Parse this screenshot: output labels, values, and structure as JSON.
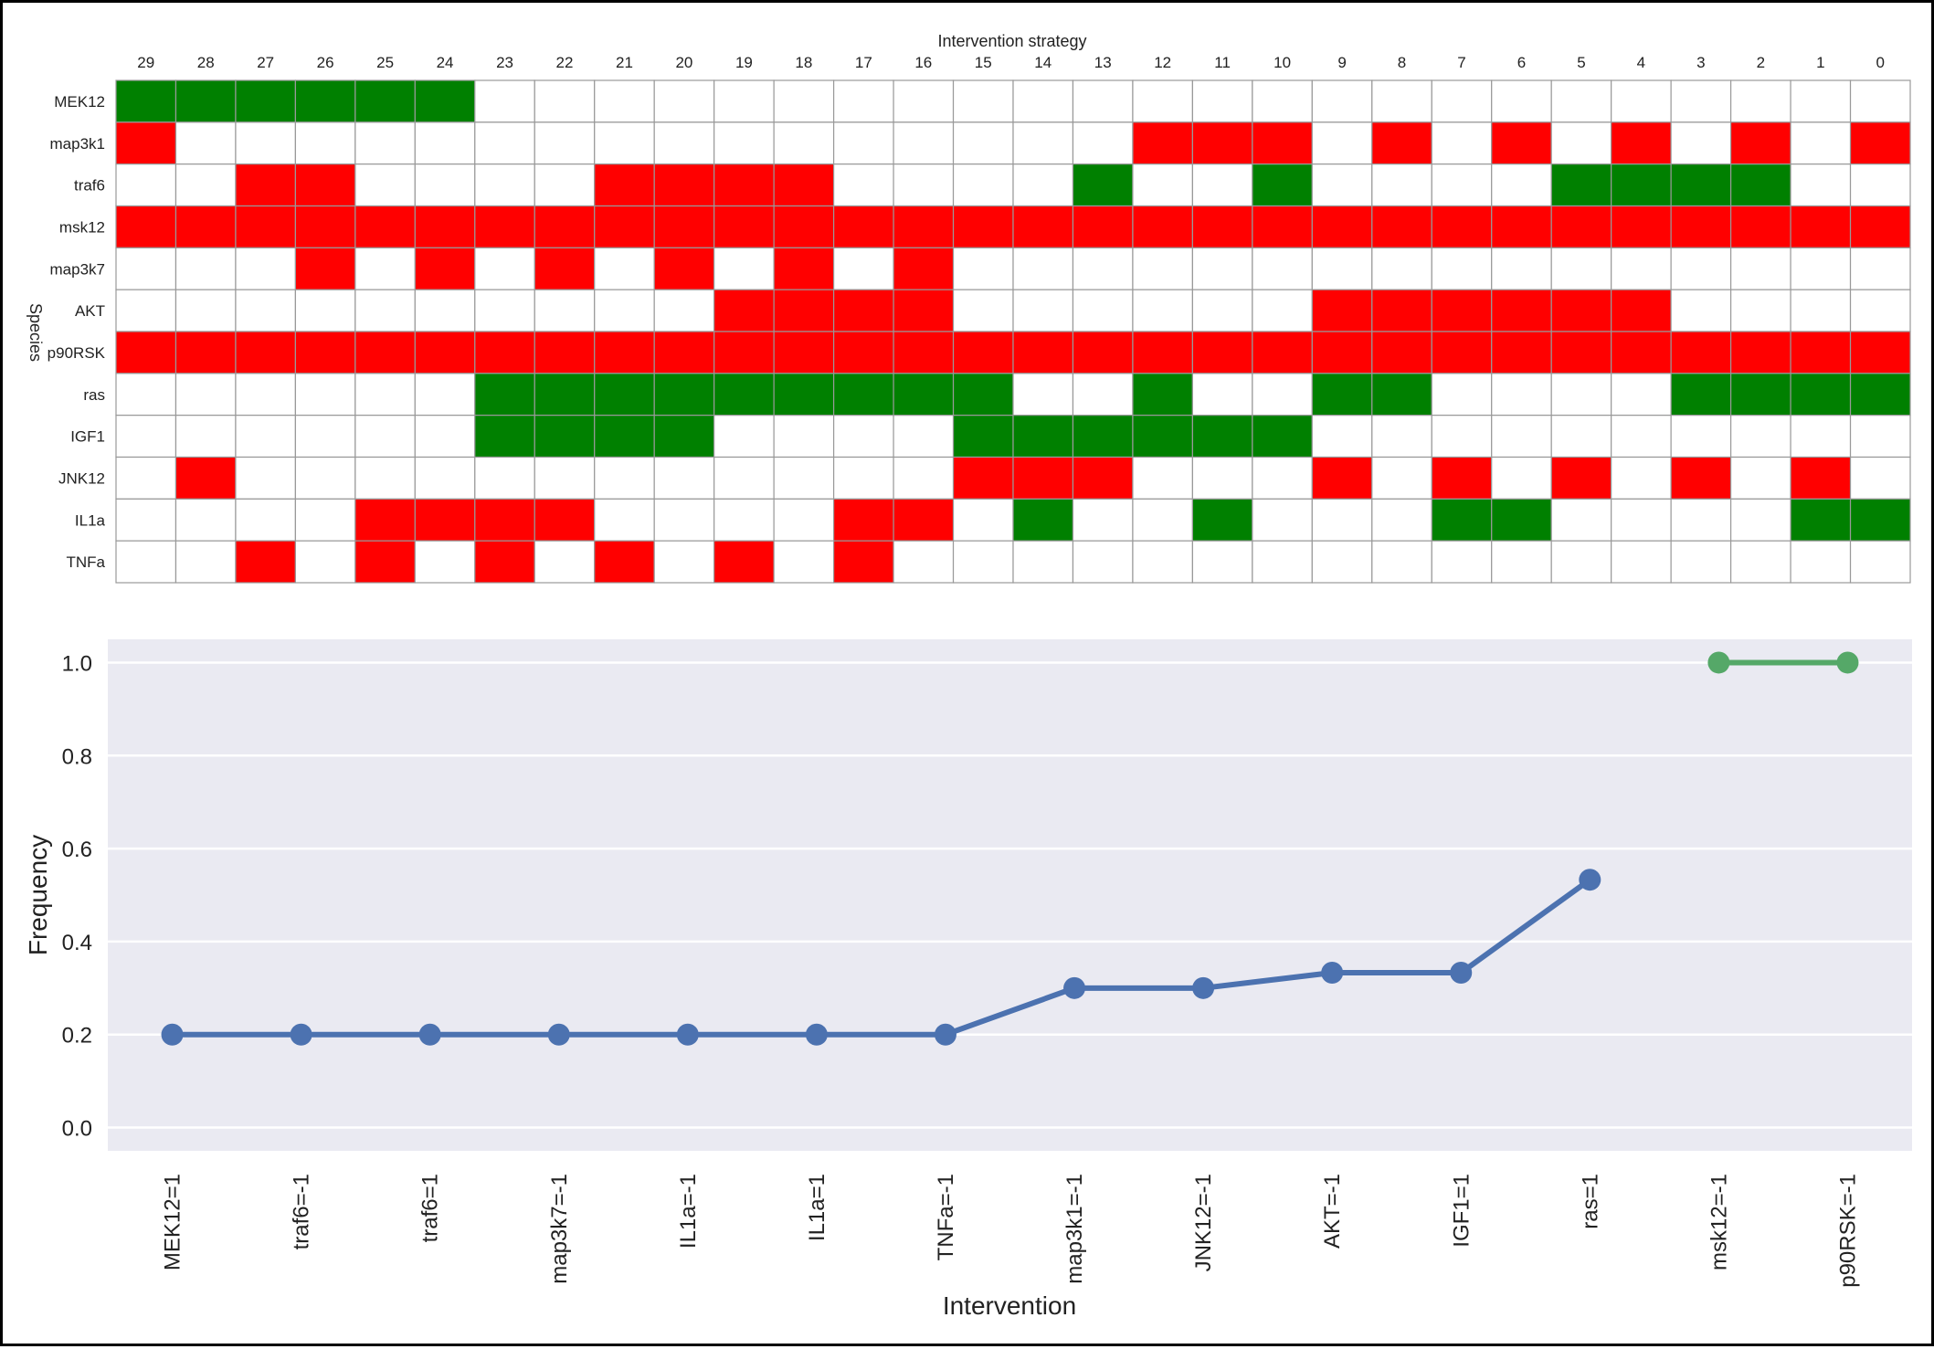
{
  "chart_data": [
    {
      "type": "heatmap",
      "title": "Intervention strategy",
      "ylabel": "Species",
      "columns": [
        29,
        28,
        27,
        26,
        25,
        24,
        23,
        22,
        21,
        20,
        19,
        18,
        17,
        16,
        15,
        14,
        13,
        12,
        11,
        10,
        9,
        8,
        7,
        6,
        5,
        4,
        3,
        2,
        1,
        0
      ],
      "rows": [
        "MEK12",
        "map3k1",
        "traf6",
        "msk12",
        "map3k7",
        "AKT",
        "p90RSK",
        "ras",
        "IGF1",
        "JNK12",
        "IL1a",
        "TNFa"
      ],
      "legend_note": "cell value 1 = green, -1 = red, 0 = white",
      "values": [
        [
          1,
          1,
          1,
          1,
          1,
          1,
          0,
          0,
          0,
          0,
          0,
          0,
          0,
          0,
          0,
          0,
          0,
          0,
          0,
          0,
          0,
          0,
          0,
          0,
          0,
          0,
          0,
          0,
          0,
          0
        ],
        [
          -1,
          0,
          0,
          0,
          0,
          0,
          0,
          0,
          0,
          0,
          0,
          0,
          0,
          0,
          0,
          0,
          0,
          -1,
          -1,
          -1,
          0,
          -1,
          0,
          -1,
          0,
          -1,
          0,
          -1,
          0,
          -1
        ],
        [
          0,
          0,
          -1,
          -1,
          0,
          0,
          0,
          0,
          -1,
          -1,
          -1,
          -1,
          0,
          0,
          0,
          0,
          1,
          0,
          0,
          1,
          0,
          0,
          0,
          0,
          1,
          1,
          1,
          1,
          0,
          0
        ],
        [
          -1,
          -1,
          -1,
          -1,
          -1,
          -1,
          -1,
          -1,
          -1,
          -1,
          -1,
          -1,
          -1,
          -1,
          -1,
          -1,
          -1,
          -1,
          -1,
          -1,
          -1,
          -1,
          -1,
          -1,
          -1,
          -1,
          -1,
          -1,
          -1,
          -1
        ],
        [
          0,
          0,
          0,
          -1,
          0,
          -1,
          0,
          -1,
          0,
          -1,
          0,
          -1,
          0,
          -1,
          0,
          0,
          0,
          0,
          0,
          0,
          0,
          0,
          0,
          0,
          0,
          0,
          0,
          0,
          0,
          0
        ],
        [
          0,
          0,
          0,
          0,
          0,
          0,
          0,
          0,
          0,
          0,
          -1,
          -1,
          -1,
          -1,
          0,
          0,
          0,
          0,
          0,
          0,
          -1,
          -1,
          -1,
          -1,
          -1,
          -1,
          0,
          0,
          0,
          0
        ],
        [
          -1,
          -1,
          -1,
          -1,
          -1,
          -1,
          -1,
          -1,
          -1,
          -1,
          -1,
          -1,
          -1,
          -1,
          -1,
          -1,
          -1,
          -1,
          -1,
          -1,
          -1,
          -1,
          -1,
          -1,
          -1,
          -1,
          -1,
          -1,
          -1,
          -1
        ],
        [
          0,
          0,
          0,
          0,
          0,
          0,
          1,
          1,
          1,
          1,
          1,
          1,
          1,
          1,
          1,
          0,
          0,
          1,
          0,
          0,
          1,
          1,
          0,
          0,
          0,
          0,
          1,
          1,
          1,
          1
        ],
        [
          0,
          0,
          0,
          0,
          0,
          0,
          1,
          1,
          1,
          1,
          0,
          0,
          0,
          0,
          1,
          1,
          1,
          1,
          1,
          1,
          0,
          0,
          0,
          0,
          0,
          0,
          0,
          0,
          0,
          0
        ],
        [
          0,
          -1,
          0,
          0,
          0,
          0,
          0,
          0,
          0,
          0,
          0,
          0,
          0,
          0,
          -1,
          -1,
          -1,
          0,
          0,
          0,
          -1,
          0,
          -1,
          0,
          -1,
          0,
          -1,
          0,
          -1,
          0
        ],
        [
          0,
          0,
          0,
          0,
          -1,
          -1,
          -1,
          -1,
          0,
          0,
          0,
          0,
          -1,
          -1,
          0,
          1,
          0,
          0,
          1,
          0,
          0,
          0,
          1,
          1,
          0,
          0,
          0,
          0,
          1,
          1
        ],
        [
          0,
          0,
          -1,
          0,
          -1,
          0,
          -1,
          0,
          -1,
          0,
          -1,
          0,
          -1,
          0,
          0,
          0,
          0,
          0,
          0,
          0,
          0,
          0,
          0,
          0,
          0,
          0,
          0,
          0,
          0,
          0
        ]
      ],
      "colors": {
        "1": "#008000",
        "-1": "#ff0000",
        "0": "#ffffff",
        "grid": "#999999"
      }
    },
    {
      "type": "line",
      "xlabel": "Intervention",
      "ylabel": "Frequency",
      "ylim": [
        -0.05,
        1.05
      ],
      "yticks": [
        "0.0",
        "0.2",
        "0.4",
        "0.6",
        "0.8",
        "1.0"
      ],
      "ytick_values": [
        0.0,
        0.2,
        0.4,
        0.6,
        0.8,
        1.0
      ],
      "categories": [
        "MEK12=1",
        "traf6=-1",
        "traf6=1",
        "map3k7=-1",
        "IL1a=-1",
        "IL1a=1",
        "TNFa=-1",
        "map3k1=-1",
        "JNK12=-1",
        "AKT=-1",
        "IGF1=1",
        "ras=1",
        "msk12=-1",
        "p90RSK=-1"
      ],
      "grid": true,
      "background": "#eaeaf2",
      "series": [
        {
          "color": "#4c72b0",
          "values": [
            0.2,
            0.2,
            0.2,
            0.2,
            0.2,
            0.2,
            0.2,
            0.3,
            0.3,
            0.333,
            0.333,
            0.533,
            null,
            null
          ]
        },
        {
          "color": "#55a868",
          "values": [
            null,
            null,
            null,
            null,
            null,
            null,
            null,
            null,
            null,
            null,
            null,
            null,
            1.0,
            1.0
          ]
        }
      ]
    }
  ]
}
